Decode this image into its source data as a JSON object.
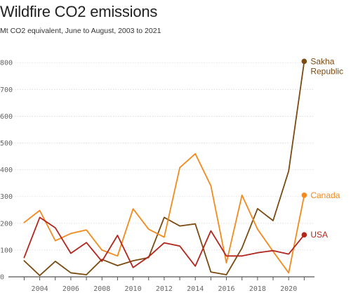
{
  "header": {
    "title": "Wildfire CO2 emissions",
    "subtitle": "Mt CO2 equivalent, June to August, 2003 to 2021"
  },
  "chart_data": {
    "type": "line",
    "title": "Wildfire CO2 emissions",
    "subtitle": "Mt CO2 equivalent, June to August, 2003 to 2021",
    "xlabel": "",
    "ylabel": "",
    "x": [
      2003,
      2004,
      2005,
      2006,
      2007,
      2008,
      2009,
      2010,
      2011,
      2012,
      2013,
      2014,
      2015,
      2016,
      2017,
      2018,
      2019,
      2020,
      2021
    ],
    "xticks": [
      "2004",
      "2006",
      "2008",
      "2010",
      "2012",
      "2014",
      "2016",
      "2018",
      "2020"
    ],
    "xtick_values": [
      2004,
      2006,
      2008,
      2010,
      2012,
      2014,
      2016,
      2018,
      2020
    ],
    "yticks": [
      "0",
      "100",
      "200",
      "300",
      "400",
      "500",
      "600",
      "700",
      "800"
    ],
    "ytick_values": [
      0,
      100,
      200,
      300,
      400,
      500,
      600,
      700,
      800
    ],
    "xlim": [
      2002.8,
      2021.3
    ],
    "ylim": [
      0,
      840
    ],
    "grid": "horizontal",
    "series": [
      {
        "name": "Sakha Republic",
        "label_lines": [
          "Sakha",
          "Republic"
        ],
        "color": "#7a4a10",
        "values": [
          60,
          5,
          58,
          15,
          8,
          65,
          42,
          60,
          72,
          222,
          190,
          198,
          18,
          8,
          108,
          255,
          210,
          395,
          805
        ]
      },
      {
        "name": "Canada",
        "label_lines": [
          "Canada"
        ],
        "color": "#f28a1d",
        "values": [
          203,
          248,
          135,
          162,
          175,
          100,
          78,
          254,
          178,
          148,
          408,
          460,
          340,
          52,
          305,
          178,
          95,
          15,
          305
        ]
      },
      {
        "name": "USA",
        "label_lines": [
          "USA"
        ],
        "color": "#b3261e",
        "values": [
          72,
          222,
          183,
          88,
          128,
          58,
          155,
          35,
          75,
          127,
          115,
          40,
          172,
          78,
          78,
          90,
          98,
          85,
          157
        ]
      }
    ]
  }
}
